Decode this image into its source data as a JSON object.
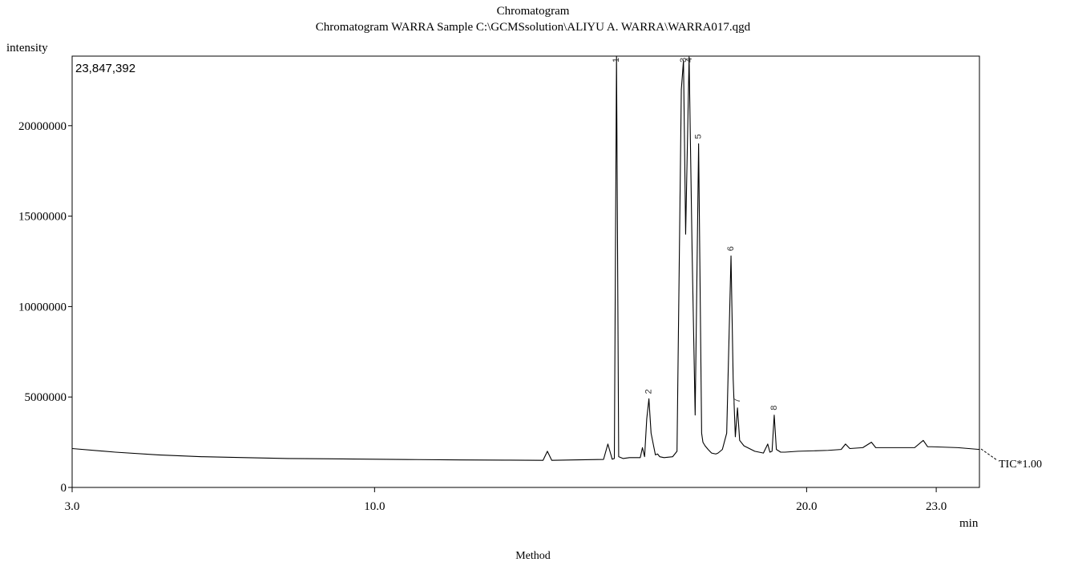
{
  "chart_data": {
    "type": "line",
    "title": "Chromatogram",
    "subtitle": "Chromatogram WARRA Sample C:\\GCMSsolution\\ALIYU A. WARRA\\WARRA017.qgd",
    "ylabel": "intensity",
    "xlabel": "min",
    "footer": "Method",
    "max_intensity_label": "23,847,392",
    "trace_label": "TIC*1.00",
    "xlim": [
      3.0,
      24.0
    ],
    "ylim": [
      0,
      23847392
    ],
    "x_ticks": [
      {
        "value": 3.0,
        "label": "3.0"
      },
      {
        "value": 10.0,
        "label": "10.0"
      },
      {
        "value": 20.0,
        "label": "20.0"
      },
      {
        "value": 23.0,
        "label": "23.0"
      }
    ],
    "y_ticks": [
      {
        "value": 0,
        "label": "0"
      },
      {
        "value": 5000000,
        "label": "5000000"
      },
      {
        "value": 10000000,
        "label": "10000000"
      },
      {
        "value": 15000000,
        "label": "15000000"
      },
      {
        "value": 20000000,
        "label": "20000000"
      }
    ],
    "grid": false,
    "legend": "none",
    "series": [
      {
        "x": [
          3.0,
          4.0,
          5.0,
          6.0,
          7.0,
          8.0,
          9.0,
          10.0,
          11.0,
          12.0,
          13.0,
          13.9,
          14.0,
          14.1,
          14.6,
          15.3,
          15.4,
          15.5,
          15.55,
          15.6,
          15.65,
          15.75,
          15.9,
          16.15,
          16.2,
          16.25,
          16.3,
          16.35,
          16.4,
          16.5,
          16.55,
          16.6,
          16.7,
          16.9,
          17.0,
          17.1,
          17.15,
          17.2,
          17.28,
          17.35,
          17.42,
          17.5,
          17.57,
          17.6,
          17.65,
          17.72,
          17.8,
          17.9,
          17.95,
          18.05,
          18.15,
          18.25,
          18.3,
          18.35,
          18.4,
          18.45,
          18.55,
          18.8,
          19.0,
          19.1,
          19.15,
          19.2,
          19.25,
          19.3,
          19.4,
          19.5,
          19.8,
          20.5,
          20.8,
          20.9,
          21.0,
          21.3,
          21.5,
          21.6,
          21.7,
          22.5,
          22.7,
          22.8,
          22.9,
          23.5,
          24.0
        ],
        "y": [
          2150000,
          1950000,
          1800000,
          1700000,
          1650000,
          1600000,
          1580000,
          1560000,
          1540000,
          1520000,
          1510000,
          1500000,
          2000000,
          1500000,
          1520000,
          1550000,
          2400000,
          1560000,
          1600000,
          23847392,
          1700000,
          1600000,
          1650000,
          1650000,
          2200000,
          1700000,
          3800000,
          4900000,
          3000000,
          1800000,
          1850000,
          1700000,
          1650000,
          1700000,
          2000000,
          22000000,
          23600000,
          14000000,
          23800000,
          13000000,
          4000000,
          19000000,
          3000000,
          2500000,
          2300000,
          2100000,
          1900000,
          1850000,
          1900000,
          2100000,
          3000000,
          12800000,
          6000000,
          2800000,
          4400000,
          2600000,
          2300000,
          2000000,
          1900000,
          2400000,
          1950000,
          2000000,
          4000000,
          2100000,
          1950000,
          1950000,
          2000000,
          2050000,
          2100000,
          2400000,
          2150000,
          2200000,
          2500000,
          2200000,
          2200000,
          2200000,
          2600000,
          2250000,
          2250000,
          2200000,
          2100000
        ]
      }
    ],
    "peak_labels": [
      {
        "x": 15.6,
        "y": 23847392,
        "label": "1"
      },
      {
        "x": 16.35,
        "y": 4900000,
        "label": "2"
      },
      {
        "x": 17.15,
        "y": 23600000,
        "label": "3"
      },
      {
        "x": 17.28,
        "y": 23800000,
        "label": "4"
      },
      {
        "x": 17.5,
        "y": 19000000,
        "label": "5"
      },
      {
        "x": 18.25,
        "y": 12800000,
        "label": "6"
      },
      {
        "x": 18.4,
        "y": 4400000,
        "label": "7"
      },
      {
        "x": 19.25,
        "y": 4000000,
        "label": "8"
      }
    ]
  }
}
